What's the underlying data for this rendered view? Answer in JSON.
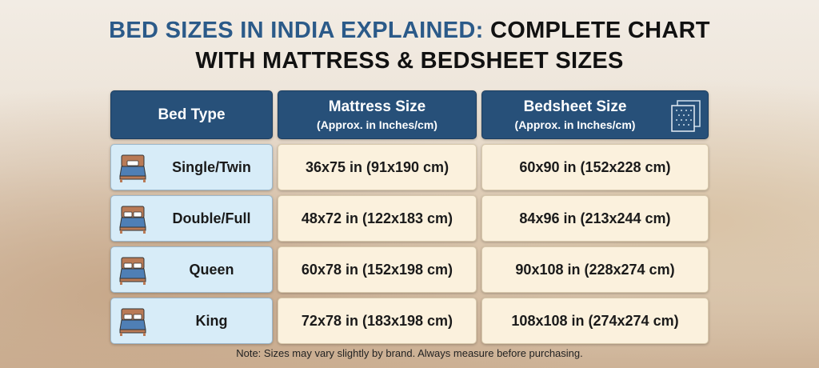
{
  "title": {
    "line1_accent": "BED SIZES IN INDIA EXPLAINED:",
    "line1_rest": " COMPLETE CHART",
    "line2": "WITH MATTRESS & BEDSHEET SIZES"
  },
  "header": {
    "bed_type": "Bed Type",
    "mattress": "Mattress Size",
    "mattress_sub": "(Approx. in Inches/cm)",
    "bedsheet": "Bedsheet Size",
    "bedsheet_sub": "(Approx. in Inches/cm)",
    "bedsheet_icon": "bedsheet-icon"
  },
  "rows": [
    {
      "type": "Single/Twin",
      "mattress": "36x75 in (91x190 cm)",
      "bedsheet": "60x90 in (152x228 cm)",
      "icon": "single-bed-icon"
    },
    {
      "type": "Double/Full",
      "mattress": "48x72 in (122x183 cm)",
      "bedsheet": "84x96 in (213x244 cm)",
      "icon": "double-bed-icon"
    },
    {
      "type": "Queen",
      "mattress": "60x78 in (152x198 cm)",
      "bedsheet": "90x108 in (228x274 cm)",
      "icon": "queen-bed-icon"
    },
    {
      "type": "King",
      "mattress": "72x78 in (183x198 cm)",
      "bedsheet": "108x108 in (274x274 cm)",
      "icon": "king-bed-icon"
    }
  ],
  "note": "Note: Sizes may vary slightly by brand. Always measure before purchasing.",
  "colors": {
    "header": "#275079",
    "accent": "#2b5a89",
    "bed_type_cell": "#d7ecf8",
    "value_cell": "#fbf1dd"
  }
}
